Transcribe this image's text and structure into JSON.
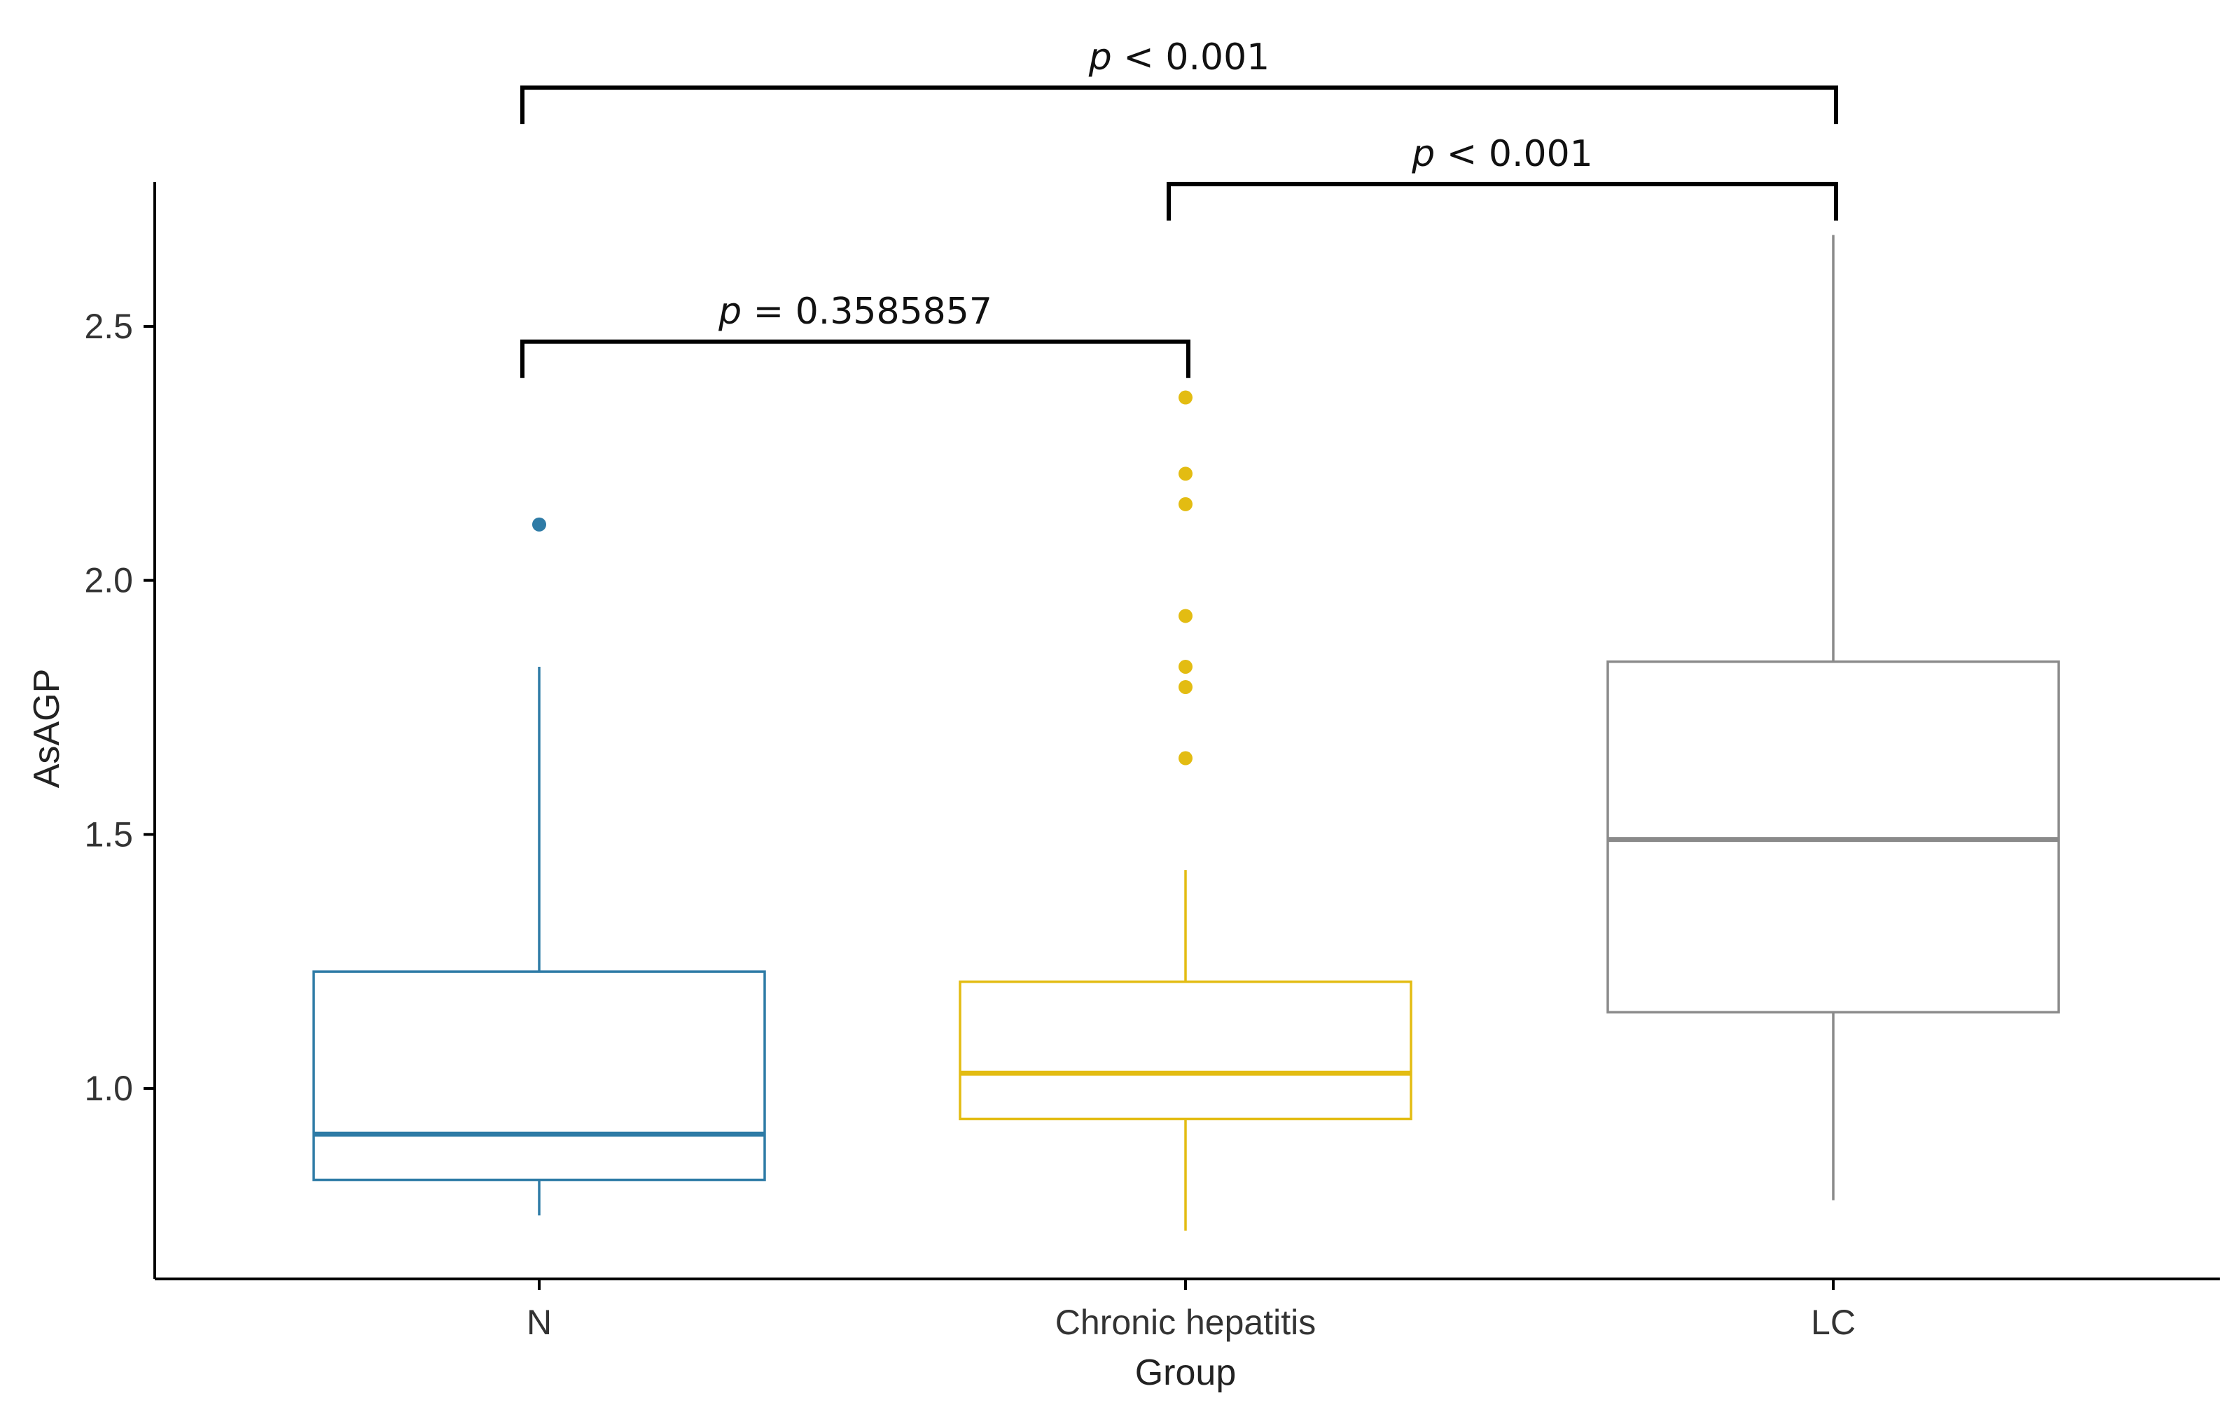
{
  "chart_data": {
    "type": "box",
    "xlabel": "Group",
    "ylabel": "AsAGP",
    "ylim": [
      0.62,
      2.78
    ],
    "yticks": [
      1.0,
      1.5,
      2.0,
      2.5
    ],
    "ytick_labels": [
      "1.0",
      "1.5",
      "2.0",
      "2.5"
    ],
    "grid": false,
    "legend": "none",
    "categories": [
      "N",
      "Chronic hepatitis",
      "LC"
    ],
    "boxes": [
      {
        "group": "N",
        "color": "#2E7BA6",
        "whisker_low": 0.75,
        "q1": 0.82,
        "median": 0.91,
        "q3": 1.23,
        "whisker_high": 1.83,
        "outliers": [
          2.11
        ]
      },
      {
        "group": "Chronic hepatitis",
        "color": "#E3BC12",
        "whisker_low": 0.72,
        "q1": 0.94,
        "median": 1.03,
        "q3": 1.21,
        "whisker_high": 1.43,
        "outliers": [
          1.65,
          1.79,
          1.83,
          1.93,
          2.15,
          2.21,
          2.36
        ]
      },
      {
        "group": "LC",
        "color": "#8A8A8A",
        "whisker_low": 0.78,
        "q1": 1.15,
        "median": 1.49,
        "q3": 1.84,
        "whisker_high": 2.68,
        "outliers": []
      }
    ],
    "comparisons": [
      {
        "from": "N",
        "to": "Chronic hepatitis",
        "p_symbol": "p",
        "p_rest": " = 0.3585857",
        "level": 2.47
      },
      {
        "from": "Chronic hepatitis",
        "to": "LC",
        "p_symbol": "p",
        "p_rest": " < 0.001",
        "level": 2.78
      },
      {
        "from": "N",
        "to": "LC",
        "p_symbol": "p",
        "p_rest": " < 0.001",
        "level": 2.97
      }
    ]
  }
}
